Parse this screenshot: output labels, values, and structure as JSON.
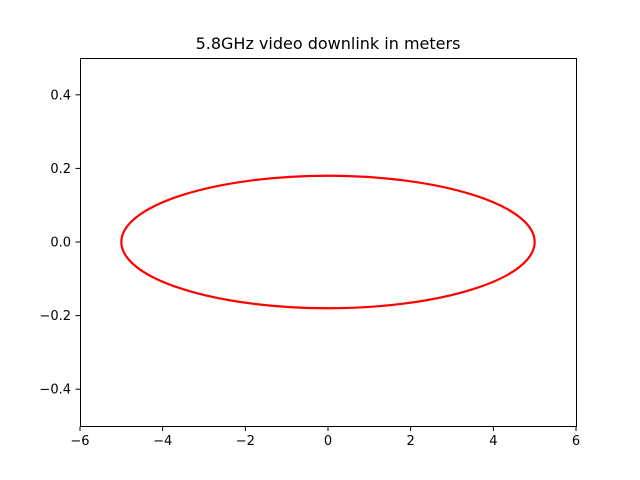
{
  "chart_data": {
    "type": "line",
    "title": "5.8GHz video downlink in meters",
    "xlabel": "",
    "ylabel": "",
    "xlim": [
      -6,
      6
    ],
    "ylim": [
      -0.5,
      0.5
    ],
    "xticks": [
      -6,
      -4,
      -2,
      0,
      2,
      4,
      6
    ],
    "yticks": [
      -0.4,
      -0.2,
      0.0,
      0.2,
      0.4
    ],
    "xtick_labels": [
      "−6",
      "−4",
      "−2",
      "0",
      "2",
      "4",
      "6"
    ],
    "ytick_labels": [
      "−0.4",
      "−0.2",
      "0.0",
      "0.2",
      "0.4"
    ],
    "grid": false,
    "legend": "none",
    "series": [
      {
        "shape": "ellipse",
        "center": [
          0,
          0
        ],
        "semi_axis_x": 5.0,
        "semi_axis_y": 0.18,
        "color": "#ff0000"
      }
    ]
  }
}
